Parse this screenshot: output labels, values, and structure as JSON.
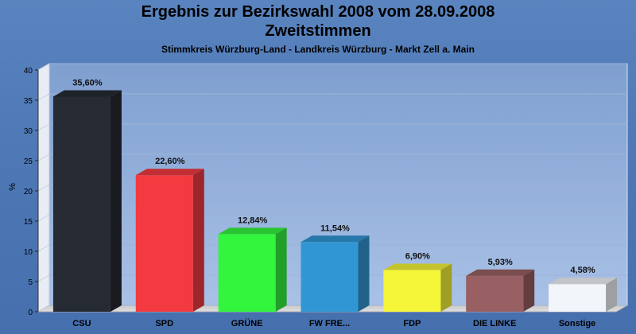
{
  "chart_data": {
    "type": "bar",
    "title": "Ergebnis zur Bezirkswahl 2008 vom 28.09.2008",
    "subtitle_line": "Zweitstimmen",
    "caption": "Stimmkreis Würzburg-Land - Landkreis Würzburg - Markt Zell a. Main",
    "ylabel": "%",
    "xlabel": "",
    "ylim": [
      0,
      40
    ],
    "yticks": [
      0,
      5,
      10,
      15,
      20,
      25,
      30,
      35,
      40
    ],
    "categories": [
      "CSU",
      "SPD",
      "GRÜNE",
      "FW FRE...",
      "FDP",
      "DIE LINKE",
      "Sonstige"
    ],
    "values": [
      35.6,
      22.6,
      12.84,
      11.54,
      6.9,
      5.93,
      4.58
    ],
    "value_labels": [
      "35,60%",
      "22,60%",
      "12,84%",
      "11,54%",
      "6,90%",
      "5,93%",
      "4,58%"
    ],
    "colors": [
      "#262a33",
      "#f23a40",
      "#33f53d",
      "#3196d4",
      "#f5f53a",
      "#986062",
      "#f2f5fa"
    ],
    "grid": true,
    "legend": "none"
  }
}
